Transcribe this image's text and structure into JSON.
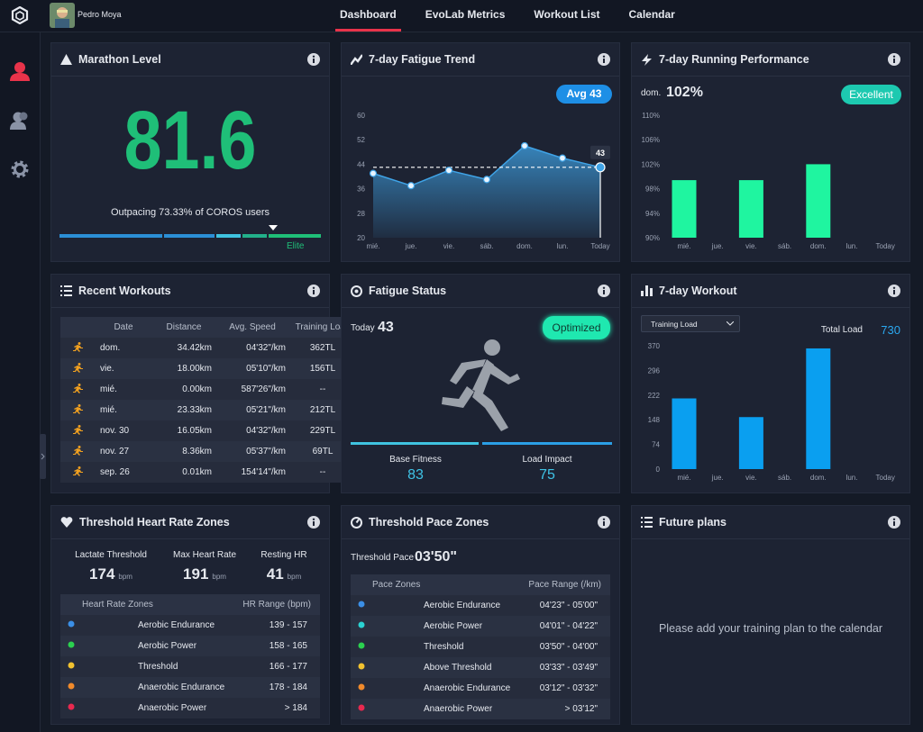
{
  "nav": {
    "user": "Pedro Moya",
    "tabs": [
      "Dashboard",
      "EvoLab Metrics",
      "Workout List",
      "Calendar"
    ]
  },
  "marathon_level": {
    "title": "Marathon Level",
    "score": 81.6,
    "caption": "Outpacing 73.33% of COROS users",
    "tier": "Elite"
  },
  "chart_data": [
    {
      "type": "area",
      "title": "7-day Fatigue Trend",
      "categories": [
        "mié.",
        "jue.",
        "vie.",
        "sáb.",
        "dom.",
        "lun.",
        "Today"
      ],
      "values": [
        41,
        37,
        42,
        39,
        50,
        46,
        43
      ],
      "average": {
        "value": 43,
        "label": "Avg 43"
      },
      "ylim": [
        20,
        60
      ],
      "yticks": [
        20,
        28,
        36,
        44,
        52,
        60
      ],
      "color": "#3fa3e6"
    },
    {
      "type": "bar",
      "title": "7-day Running Performance",
      "categories": [
        "mié.",
        "jue.",
        "vie.",
        "sáb.",
        "dom.",
        "lun.",
        "Today"
      ],
      "values": [
        99.4,
        null,
        99.4,
        null,
        102,
        null,
        null
      ],
      "value_labels": [
        null,
        null,
        null,
        null,
        "102%",
        null,
        null
      ],
      "badge": "Excellent",
      "ylim": [
        90,
        110
      ],
      "yticks": [
        {
          "value": 90,
          "label": "90%"
        },
        {
          "value": 94,
          "label": "94%"
        },
        {
          "value": 98,
          "label": "98%"
        },
        {
          "value": 102,
          "label": "102%"
        },
        {
          "value": 106,
          "label": "106%"
        },
        {
          "value": 110,
          "label": "110%"
        }
      ],
      "color": "#1ff5a0"
    },
    {
      "type": "bar",
      "title": "7-day Workout",
      "dropdown": "Training Load",
      "total_label": "Total Load",
      "total": 730,
      "categories": [
        "mié.",
        "jue.",
        "vie.",
        "sáb.",
        "dom.",
        "lun.",
        "Today"
      ],
      "values": [
        212,
        null,
        156,
        null,
        362,
        null,
        null
      ],
      "ylim": [
        0,
        370
      ],
      "yticks": [
        0,
        74,
        148,
        222,
        296,
        370
      ],
      "color": "#0a9ff0"
    }
  ],
  "recent_workouts": {
    "title": "Recent Workouts",
    "columns": [
      "Date",
      "Distance",
      "Avg. Speed",
      "Training Load"
    ],
    "rows": [
      [
        "dom.",
        "34.42km",
        "04'32\"/km",
        "362TL"
      ],
      [
        "vie.",
        "18.00km",
        "05'10\"/km",
        "156TL"
      ],
      [
        "mié.",
        "0.00km",
        "587'26\"/km",
        "--"
      ],
      [
        "mié.",
        "23.33km",
        "05'21\"/km",
        "212TL"
      ],
      [
        "nov. 30",
        "16.05km",
        "04'32\"/km",
        "229TL"
      ],
      [
        "nov. 27",
        "8.36km",
        "05'37\"/km",
        "69TL"
      ],
      [
        "sep. 26",
        "0.01km",
        "154'14\"/km",
        "--"
      ]
    ]
  },
  "fatigue_status": {
    "title": "Fatigue Status",
    "today_label": "Today",
    "today": 43,
    "state": "Optimized",
    "metrics": [
      {
        "label": "Base Fitness",
        "value": 83
      },
      {
        "label": "Load Impact",
        "value": 75
      }
    ]
  },
  "hr_zones": {
    "title": "Threshold Heart Rate Zones",
    "unit": "bpm",
    "stats": [
      {
        "label": "Lactate Threshold",
        "value": 174
      },
      {
        "label": "Max Heart Rate",
        "value": 191
      },
      {
        "label": "Resting HR",
        "value": 41
      }
    ],
    "columns": [
      "Heart Rate Zones",
      "HR Range (bpm)"
    ],
    "zones": [
      {
        "name": "Aerobic Endurance",
        "range": "139 - 157",
        "color": "#3b8fe6"
      },
      {
        "name": "Aerobic Power",
        "range": "158 - 165",
        "color": "#2bd14f"
      },
      {
        "name": "Threshold",
        "range": "166 - 177",
        "color": "#f2c230"
      },
      {
        "name": "Anaerobic Endurance",
        "range": "178 - 184",
        "color": "#f08a2b"
      },
      {
        "name": "Anaerobic Power",
        "range": "> 184",
        "color": "#e8294f"
      }
    ]
  },
  "pace_zones": {
    "title": "Threshold Pace Zones",
    "threshold_label": "Threshold Pace",
    "threshold": "03'50\"",
    "columns": [
      "Pace Zones",
      "Pace Range (/km)"
    ],
    "zones": [
      {
        "name": "Aerobic Endurance",
        "range": "04'23\" - 05'00\"",
        "color": "#3b8fe6"
      },
      {
        "name": "Aerobic Power",
        "range": "04'01\" - 04'22\"",
        "color": "#2ad3d3"
      },
      {
        "name": "Threshold",
        "range": "03'50\" - 04'00\"",
        "color": "#2bd14f"
      },
      {
        "name": "Above Threshold",
        "range": "03'33\" - 03'49\"",
        "color": "#f2c230"
      },
      {
        "name": "Anaerobic Endurance",
        "range": "03'12\" - 03'32\"",
        "color": "#f08a2b"
      },
      {
        "name": "Anaerobic Power",
        "range": "> 03'12\"",
        "color": "#e8294f"
      }
    ]
  },
  "future_plans": {
    "title": "Future plans",
    "message": "Please add your training plan to the calendar"
  }
}
